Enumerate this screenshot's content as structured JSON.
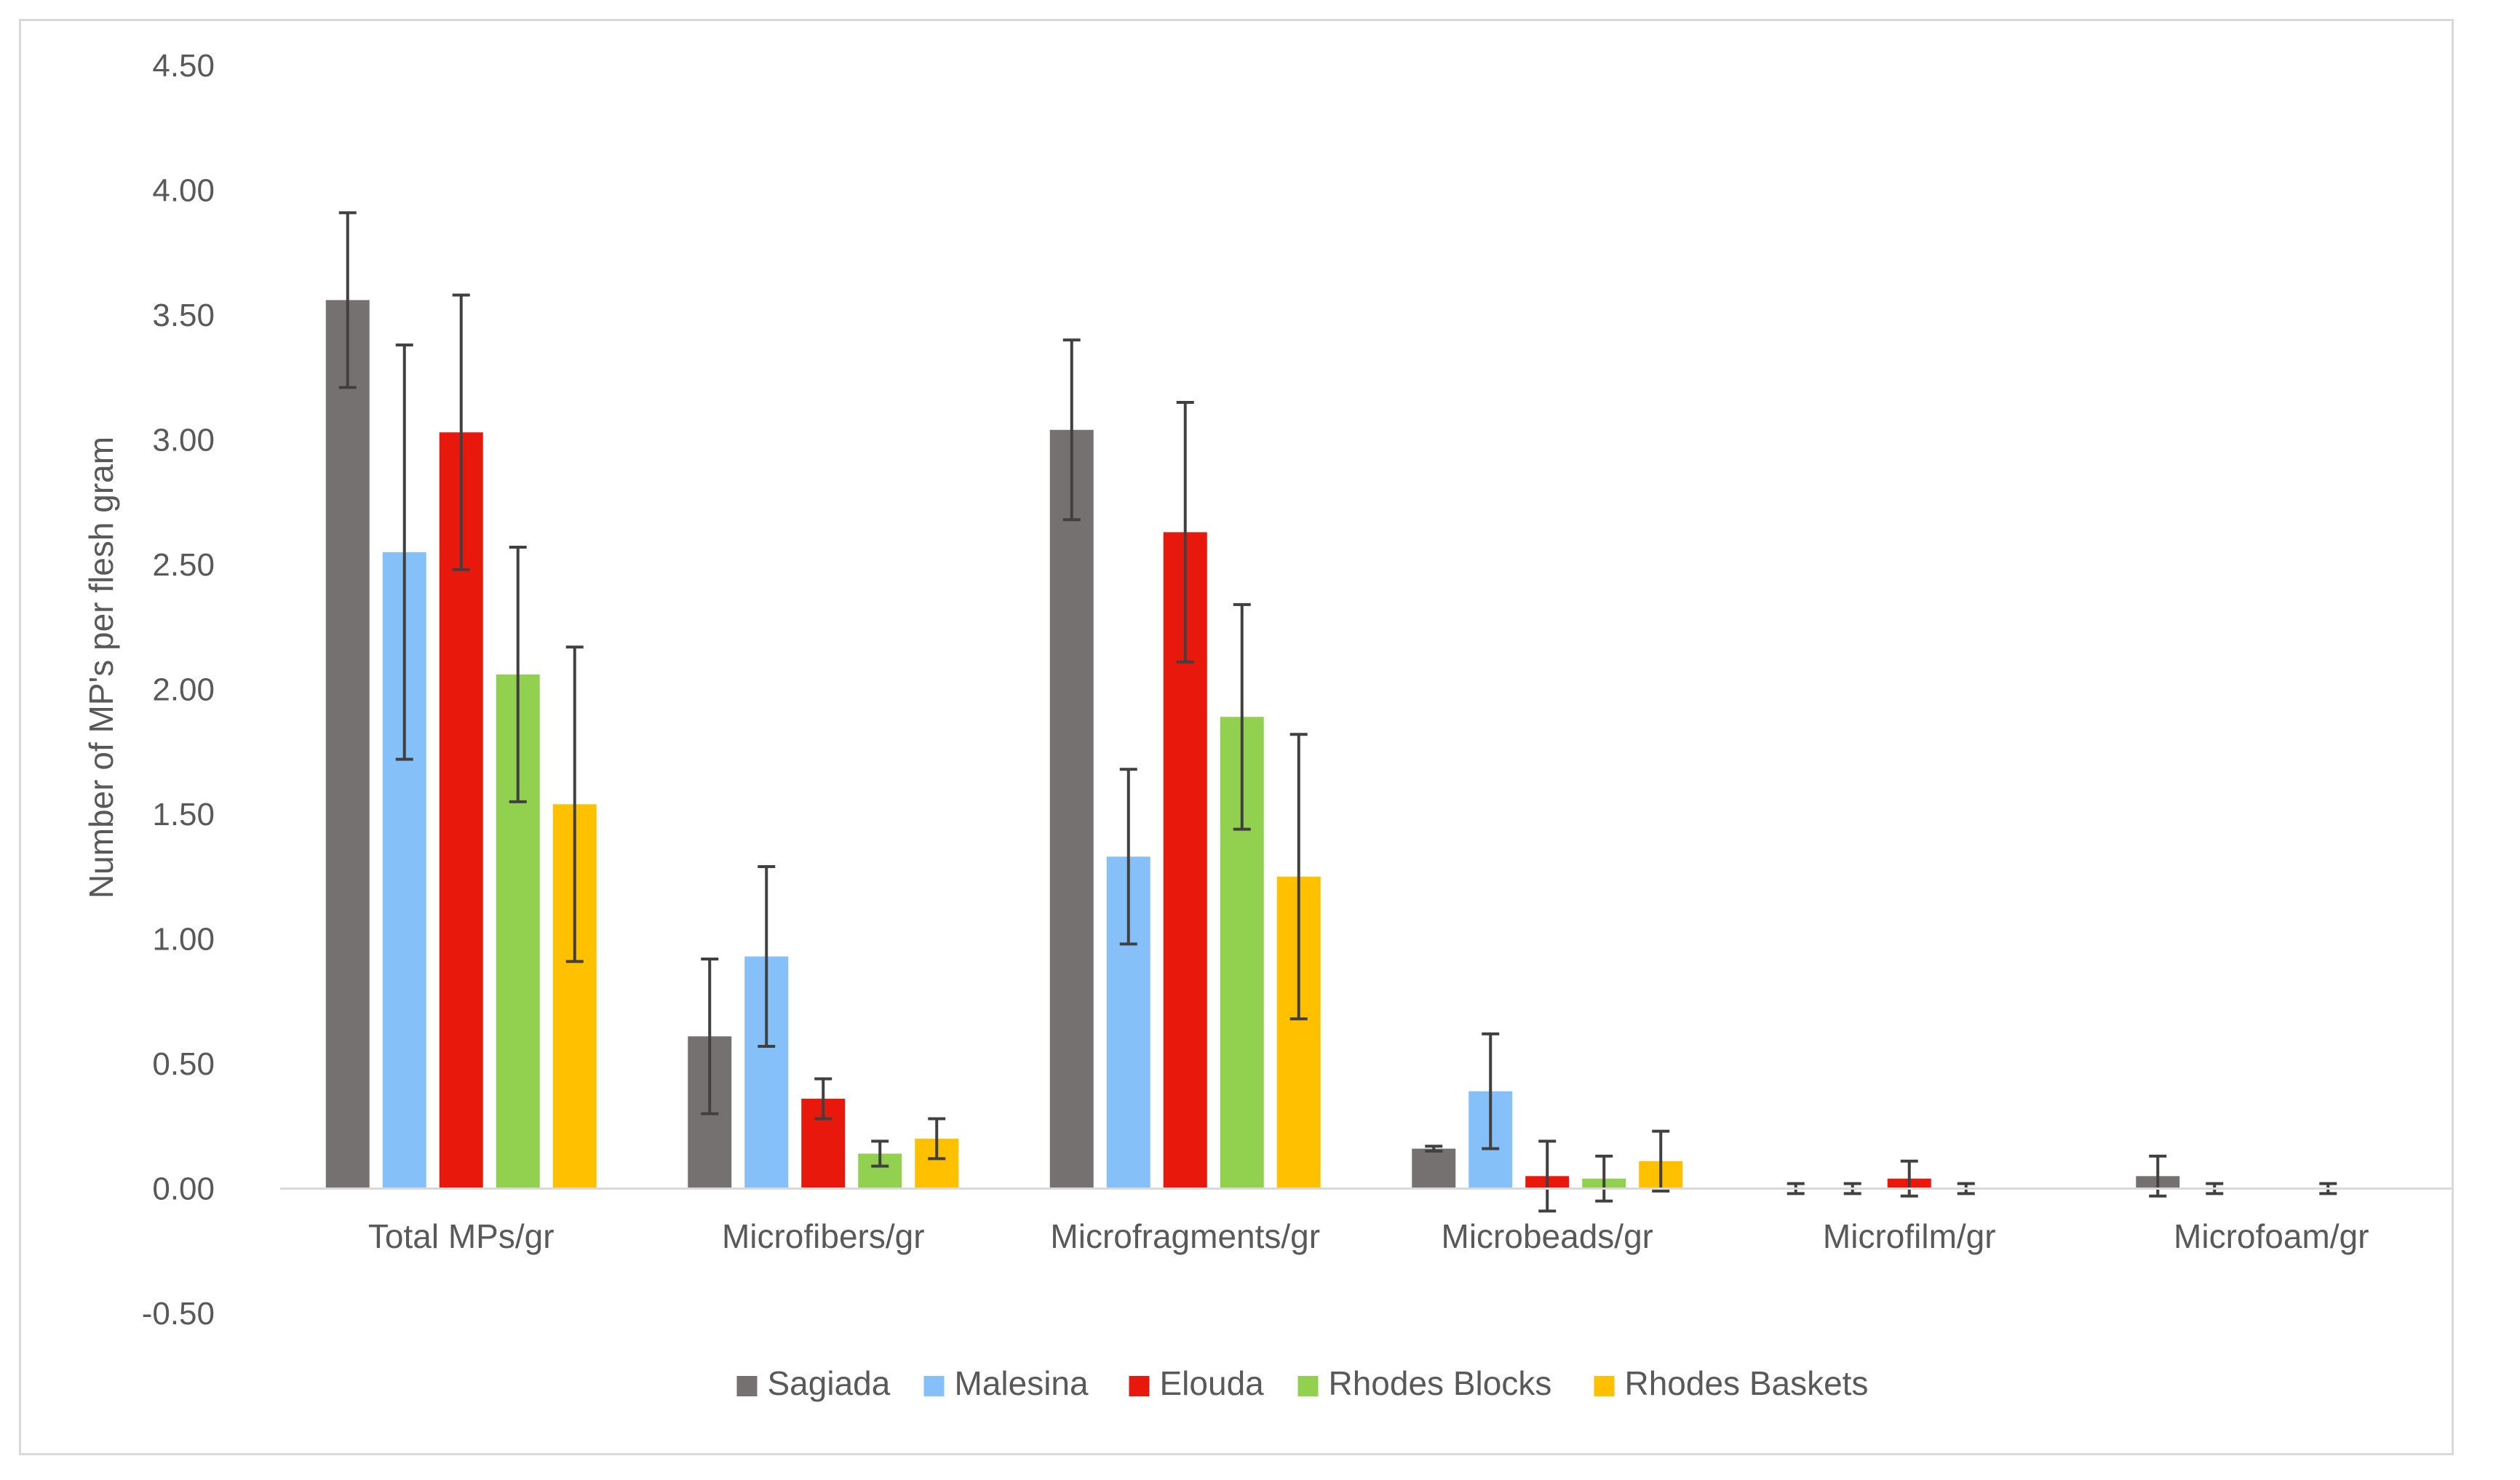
{
  "chart_data": {
    "type": "bar",
    "title": "",
    "xlabel": "",
    "ylabel": "Number of MP's per flesh gram",
    "ylim": [
      -0.5,
      4.5
    ],
    "yticks": [
      "-0.50",
      "0.00",
      "0.50",
      "1.00",
      "1.50",
      "2.00",
      "2.50",
      "3.00",
      "3.50",
      "4.00",
      "4.50"
    ],
    "grid": false,
    "error_bars": true,
    "legend_position": "bottom",
    "categories": [
      "Total MPs/gr",
      "Microfibers/gr",
      "Microfragments/gr",
      "Microbeads/gr",
      "Microfilm/gr",
      "Microfoam/gr"
    ],
    "series": [
      {
        "name": "Sagiada",
        "color": "#767171",
        "values": [
          3.56,
          0.61,
          3.04,
          0.16,
          0.0,
          0.05
        ],
        "errors": [
          0.35,
          0.31,
          0.36,
          0.01,
          0.02,
          0.08
        ]
      },
      {
        "name": "Malesina",
        "color": "#85c0f9",
        "values": [
          2.55,
          0.93,
          1.33,
          0.39,
          0.0,
          0.0
        ],
        "errors": [
          0.83,
          0.36,
          0.35,
          0.23,
          0.02,
          0.02
        ]
      },
      {
        "name": "Elouda",
        "color": "#e8180c",
        "values": [
          3.03,
          0.36,
          2.63,
          0.05,
          0.04,
          0.0
        ],
        "errors": [
          0.55,
          0.08,
          0.52,
          0.14,
          0.07,
          0.0
        ]
      },
      {
        "name": "Rhodes Blocks",
        "color": "#92d050",
        "values": [
          2.06,
          0.14,
          1.89,
          0.04,
          0.0,
          0.0
        ],
        "errors": [
          0.51,
          0.05,
          0.45,
          0.09,
          0.02,
          0.02
        ]
      },
      {
        "name": "Rhodes Baskets",
        "color": "#ffc000",
        "values": [
          1.54,
          0.2,
          1.25,
          0.11,
          0.0,
          0.0
        ],
        "errors": [
          0.63,
          0.08,
          0.57,
          0.12,
          0.0,
          0.0
        ]
      }
    ]
  }
}
